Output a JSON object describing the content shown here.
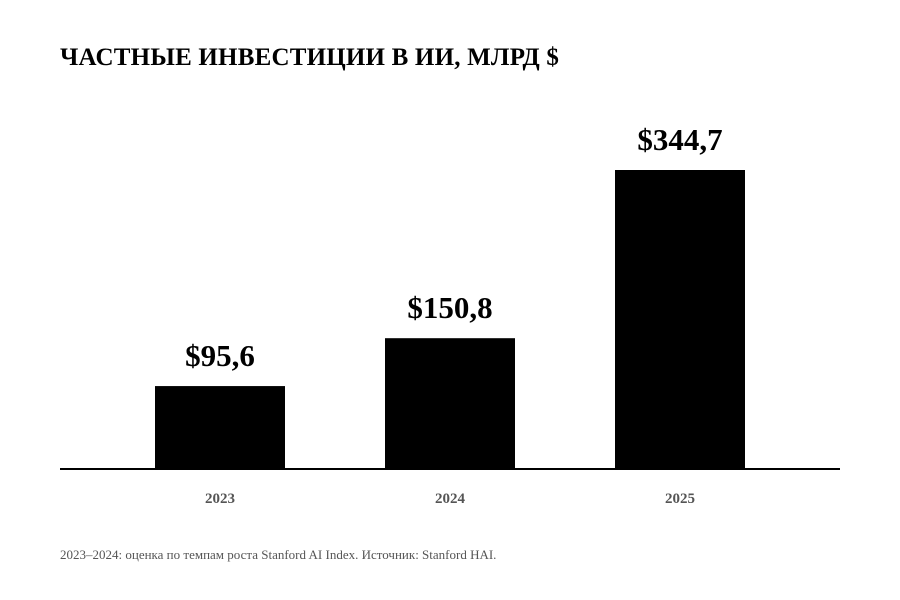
{
  "chart_data": {
    "type": "bar",
    "title": "ЧАСТНЫЕ ИНВЕСТИЦИИ В ИИ, МЛРД $",
    "categories": [
      "2023",
      "2024",
      "2025"
    ],
    "values": [
      95.6,
      150.8,
      344.7
    ],
    "value_labels": [
      "$95,6",
      "$150,8",
      "$344,7"
    ],
    "xlabel": "",
    "ylabel": "",
    "ylim": [
      0,
      344.7
    ],
    "grid": false,
    "legend": "none",
    "colors": {
      "bar": "#000000",
      "axis": "#000000",
      "tick_label": "#555555"
    },
    "note": "2023–2024: оценка по темпам роста Stanford AI Index. Источник: Stanford HAI."
  }
}
